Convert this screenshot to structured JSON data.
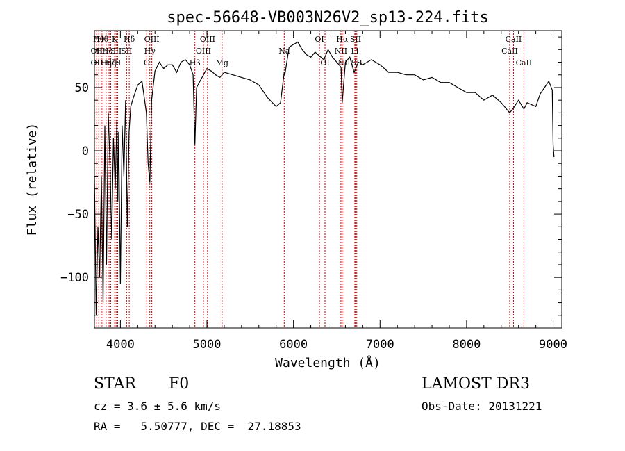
{
  "chart_data": {
    "type": "line",
    "title": "spec-56648-VB003N26V2_sp13-224.fits",
    "xlabel": "Wavelength (Å)",
    "ylabel": "Flux (relative)",
    "xlim": [
      3700,
      9100
    ],
    "ylim": [
      -140,
      95
    ],
    "xticks": [
      4000,
      5000,
      6000,
      7000,
      8000,
      9000
    ],
    "yticks": [
      -100,
      -50,
      0,
      50
    ],
    "series": [
      {
        "name": "flux",
        "x": [
          3700,
          3720,
          3740,
          3760,
          3780,
          3800,
          3820,
          3840,
          3860,
          3880,
          3900,
          3920,
          3940,
          3960,
          3970,
          3980,
          4000,
          4020,
          4040,
          4060,
          4080,
          4100,
          4120,
          4150,
          4200,
          4250,
          4300,
          4320,
          4340,
          4360,
          4400,
          4450,
          4500,
          4550,
          4600,
          4650,
          4700,
          4750,
          4800,
          4840,
          4861,
          4880,
          4920,
          4960,
          5000,
          5050,
          5100,
          5150,
          5200,
          5300,
          5400,
          5500,
          5600,
          5700,
          5800,
          5850,
          5893,
          5900,
          5950,
          6000,
          6050,
          6100,
          6150,
          6200,
          6250,
          6300,
          6350,
          6400,
          6450,
          6500,
          6550,
          6563,
          6600,
          6650,
          6700,
          6750,
          6800,
          6900,
          7000,
          7100,
          7200,
          7300,
          7400,
          7500,
          7600,
          7700,
          7800,
          7900,
          8000,
          8100,
          8200,
          8300,
          8400,
          8498,
          8542,
          8600,
          8662,
          8700,
          8800,
          8850,
          8900,
          8950,
          8990,
          9000,
          9010
        ],
        "y": [
          -20,
          -130,
          -60,
          -100,
          -20,
          -120,
          20,
          -90,
          30,
          -10,
          -70,
          10,
          -30,
          25,
          -40,
          15,
          -105,
          20,
          -20,
          40,
          -60,
          15,
          35,
          42,
          52,
          55,
          30,
          -10,
          -25,
          40,
          63,
          70,
          65,
          68,
          68,
          62,
          70,
          72,
          68,
          60,
          5,
          50,
          55,
          60,
          65,
          63,
          60,
          58,
          62,
          60,
          58,
          56,
          52,
          42,
          35,
          38,
          62,
          60,
          82,
          84,
          86,
          80,
          76,
          74,
          78,
          75,
          72,
          80,
          74,
          70,
          66,
          38,
          70,
          74,
          62,
          70,
          68,
          72,
          68,
          62,
          62,
          60,
          60,
          56,
          58,
          54,
          54,
          50,
          46,
          46,
          40,
          44,
          38,
          30,
          34,
          40,
          33,
          38,
          35,
          45,
          50,
          55,
          48,
          5,
          -5
        ]
      }
    ],
    "line_markers": [
      {
        "wl": 3727,
        "label": "OII",
        "row": 2
      },
      {
        "wl": 3727,
        "label": "OII",
        "row": 3
      },
      {
        "wl": 3750,
        "label": "Hθ",
        "row": 1
      },
      {
        "wl": 3780,
        "label": "He",
        "row": 2
      },
      {
        "wl": 3798,
        "label": "Hθ",
        "row": 1
      },
      {
        "wl": 3835,
        "label": "Hη",
        "row": 3
      },
      {
        "wl": 3869,
        "label": "HeI",
        "row": 2
      },
      {
        "wl": 3889,
        "label": "Hζ",
        "row": 3
      },
      {
        "wl": 3934,
        "label": "K",
        "row": 1
      },
      {
        "wl": 3950,
        "label": "SII",
        "row": 2
      },
      {
        "wl": 3969,
        "label": "H",
        "row": 3
      },
      {
        "wl": 4102,
        "label": "Hδ",
        "row": 1
      },
      {
        "wl": 4072,
        "label": "SII",
        "row": 2
      },
      {
        "wl": 4304,
        "label": "G",
        "row": 3
      },
      {
        "wl": 4340,
        "label": "Hγ",
        "row": 2
      },
      {
        "wl": 4363,
        "label": "OIII",
        "row": 1
      },
      {
        "wl": 4861,
        "label": "Hβ",
        "row": 3
      },
      {
        "wl": 4959,
        "label": "OIII",
        "row": 2
      },
      {
        "wl": 5007,
        "label": "OIII",
        "row": 1
      },
      {
        "wl": 5175,
        "label": "Mg",
        "row": 3
      },
      {
        "wl": 5893,
        "label": "Na",
        "row": 2
      },
      {
        "wl": 6300,
        "label": "OI",
        "row": 1
      },
      {
        "wl": 6364,
        "label": "OI",
        "row": 3
      },
      {
        "wl": 6548,
        "label": "NII",
        "row": 2
      },
      {
        "wl": 6563,
        "label": "Hα",
        "row": 1
      },
      {
        "wl": 6584,
        "label": "NII",
        "row": 3
      },
      {
        "wl": 6708,
        "label": "Li",
        "row": 2
      },
      {
        "wl": 6717,
        "label": "SII",
        "row": 1
      },
      {
        "wl": 6731,
        "label": "SII",
        "row": 3
      },
      {
        "wl": 8498,
        "label": "CaII",
        "row": 2
      },
      {
        "wl": 8542,
        "label": "CaII",
        "row": 1
      },
      {
        "wl": 8662,
        "label": "CaII",
        "row": 3
      }
    ]
  },
  "info": {
    "class_label": "STAR",
    "subclass": "F0",
    "cz": "cz = 3.6 ± 5.6 km/s",
    "radec": "RA =   5.50777, DEC =  27.18853",
    "survey": "LAMOST DR3",
    "obs_date": "Obs-Date: 20131221"
  },
  "colors": {
    "line": "#000000",
    "marker": "#cc0000",
    "axis": "#000000"
  }
}
